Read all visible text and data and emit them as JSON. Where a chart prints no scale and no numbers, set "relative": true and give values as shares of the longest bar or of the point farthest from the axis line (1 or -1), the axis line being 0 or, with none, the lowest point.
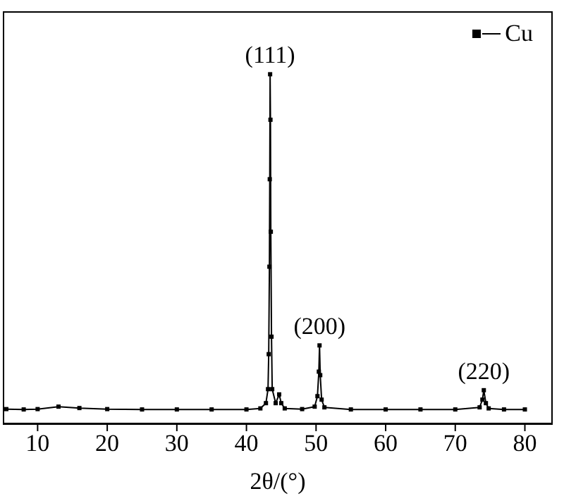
{
  "chart_data": {
    "type": "line",
    "xlabel": "2θ/(°)",
    "relative": true,
    "xlim": [
      5,
      84
    ],
    "xticks": [
      10,
      20,
      30,
      40,
      50,
      60,
      70,
      80
    ],
    "marker": "square",
    "legend": "top right",
    "annotations": [
      {
        "text": "(111)",
        "x": 43.4,
        "y": 1
      },
      {
        "text": "(200)",
        "x": 50.5,
        "y": 0.225
      },
      {
        "text": "(220)",
        "x": 74.1,
        "y": 0.097
      }
    ],
    "series": [
      {
        "name": "Cu",
        "color": "#000000",
        "x": [
          5.5,
          8,
          10,
          13,
          16,
          20,
          25,
          30,
          35,
          40,
          42,
          42.8,
          43.1,
          43.2,
          43.3,
          43.35,
          43.4,
          43.45,
          43.5,
          43.6,
          43.7,
          44.2,
          44.7,
          45,
          45.5,
          48,
          49.8,
          50.2,
          50.4,
          50.5,
          50.6,
          50.8,
          51.2,
          55,
          60,
          65,
          70,
          73.5,
          73.9,
          74.1,
          74.4,
          74.8,
          77,
          80
        ],
        "values": [
          0.043,
          0.042,
          0.043,
          0.05,
          0.046,
          0.043,
          0.042,
          0.042,
          0.042,
          0.042,
          0.045,
          0.06,
          0.1,
          0.2,
          0.45,
          0.7,
          1,
          0.87,
          0.55,
          0.25,
          0.1,
          0.06,
          0.085,
          0.06,
          0.045,
          0.043,
          0.05,
          0.08,
          0.15,
          0.225,
          0.14,
          0.07,
          0.048,
          0.042,
          0.042,
          0.042,
          0.042,
          0.048,
          0.07,
          0.097,
          0.06,
          0.045,
          0.042,
          0.042
        ]
      }
    ]
  }
}
